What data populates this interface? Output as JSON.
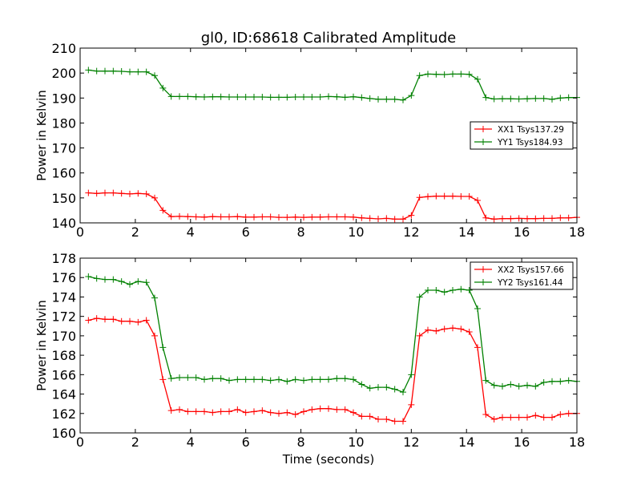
{
  "chart_data": [
    {
      "type": "line",
      "title": "gl0, ID:68618 Calibrated Amplitude",
      "xlabel": "",
      "ylabel": "Power in Kelvin",
      "xlim": [
        0,
        18
      ],
      "ylim": [
        140,
        210
      ],
      "xticks": [
        "0",
        "2",
        "4",
        "6",
        "8",
        "10",
        "12",
        "14",
        "16",
        "18"
      ],
      "yticks": [
        "140",
        "150",
        "160",
        "170",
        "180",
        "190",
        "200",
        "210"
      ],
      "grid": false,
      "legend_position": "center-right",
      "x": [
        0.3,
        0.6,
        0.9,
        1.2,
        1.5,
        1.8,
        2.1,
        2.4,
        2.7,
        3.0,
        3.3,
        3.6,
        3.9,
        4.2,
        4.5,
        4.8,
        5.1,
        5.4,
        5.7,
        6.0,
        6.3,
        6.6,
        6.9,
        7.2,
        7.5,
        7.8,
        8.1,
        8.4,
        8.7,
        9.0,
        9.3,
        9.6,
        9.9,
        10.2,
        10.5,
        10.8,
        11.1,
        11.4,
        11.7,
        12.0,
        12.3,
        12.6,
        12.9,
        13.2,
        13.5,
        13.8,
        14.1,
        14.4,
        14.7,
        15.0,
        15.3,
        15.6,
        15.9,
        16.2,
        16.5,
        16.8,
        17.1,
        17.4,
        17.7,
        18.0
      ],
      "series": [
        {
          "name": "XX1 Tsys137.29",
          "color": "#ff0000",
          "values": [
            152.0,
            151.8,
            152.0,
            152.0,
            151.8,
            151.6,
            151.8,
            151.6,
            150.0,
            145.0,
            142.5,
            142.6,
            142.5,
            142.4,
            142.3,
            142.5,
            142.4,
            142.4,
            142.5,
            142.3,
            142.3,
            142.4,
            142.4,
            142.2,
            142.2,
            142.3,
            142.2,
            142.3,
            142.3,
            142.4,
            142.4,
            142.4,
            142.3,
            142.0,
            141.8,
            141.6,
            141.8,
            141.5,
            141.5,
            143.0,
            150.2,
            150.5,
            150.7,
            150.7,
            150.7,
            150.6,
            150.6,
            149.0,
            142.0,
            141.5,
            141.7,
            141.7,
            141.8,
            141.7,
            141.7,
            141.8,
            141.8,
            142.0,
            142.0,
            142.2
          ]
        },
        {
          "name": "YY1 Tsys184.93",
          "color": "#008000",
          "values": [
            201.2,
            200.8,
            200.8,
            200.8,
            200.7,
            200.5,
            200.5,
            200.5,
            199.0,
            194.0,
            190.6,
            190.6,
            190.6,
            190.5,
            190.4,
            190.5,
            190.5,
            190.4,
            190.4,
            190.4,
            190.4,
            190.4,
            190.3,
            190.3,
            190.3,
            190.4,
            190.4,
            190.4,
            190.4,
            190.6,
            190.5,
            190.3,
            190.5,
            190.2,
            189.8,
            189.5,
            189.5,
            189.5,
            189.2,
            191.0,
            199.0,
            199.6,
            199.5,
            199.4,
            199.6,
            199.6,
            199.5,
            197.5,
            190.2,
            189.6,
            189.7,
            189.7,
            189.6,
            189.7,
            189.8,
            189.8,
            189.5,
            190.0,
            190.2,
            190.2
          ]
        }
      ]
    },
    {
      "type": "line",
      "title": "",
      "xlabel": "Time (seconds)",
      "ylabel": "Power in Kelvin",
      "xlim": [
        0,
        18
      ],
      "ylim": [
        160,
        178
      ],
      "xticks": [
        "0",
        "2",
        "4",
        "6",
        "8",
        "10",
        "12",
        "14",
        "16",
        "18"
      ],
      "yticks": [
        "160",
        "162",
        "164",
        "166",
        "168",
        "170",
        "172",
        "174",
        "176",
        "178"
      ],
      "grid": false,
      "legend_position": "top-right",
      "x": [
        0.3,
        0.6,
        0.9,
        1.2,
        1.5,
        1.8,
        2.1,
        2.4,
        2.7,
        3.0,
        3.3,
        3.6,
        3.9,
        4.2,
        4.5,
        4.8,
        5.1,
        5.4,
        5.7,
        6.0,
        6.3,
        6.6,
        6.9,
        7.2,
        7.5,
        7.8,
        8.1,
        8.4,
        8.7,
        9.0,
        9.3,
        9.6,
        9.9,
        10.2,
        10.5,
        10.8,
        11.1,
        11.4,
        11.7,
        12.0,
        12.3,
        12.6,
        12.9,
        13.2,
        13.5,
        13.8,
        14.1,
        14.4,
        14.7,
        15.0,
        15.3,
        15.6,
        15.9,
        16.2,
        16.5,
        16.8,
        17.1,
        17.4,
        17.7,
        18.0
      ],
      "series": [
        {
          "name": "XX2 Tsys157.66",
          "color": "#ff0000",
          "values": [
            171.6,
            171.8,
            171.7,
            171.7,
            171.5,
            171.5,
            171.4,
            171.6,
            170.0,
            165.5,
            162.3,
            162.4,
            162.2,
            162.2,
            162.2,
            162.1,
            162.2,
            162.2,
            162.4,
            162.1,
            162.2,
            162.3,
            162.1,
            162.0,
            162.1,
            161.9,
            162.2,
            162.4,
            162.5,
            162.5,
            162.4,
            162.4,
            162.1,
            161.7,
            161.7,
            161.4,
            161.4,
            161.2,
            161.2,
            162.9,
            170.0,
            170.6,
            170.5,
            170.7,
            170.8,
            170.7,
            170.4,
            168.8,
            161.9,
            161.4,
            161.6,
            161.6,
            161.6,
            161.6,
            161.8,
            161.6,
            161.6,
            161.9,
            162.0,
            162.0
          ]
        },
        {
          "name": "YY2 Tsys161.44",
          "color": "#008000",
          "values": [
            176.1,
            175.9,
            175.8,
            175.8,
            175.6,
            175.3,
            175.6,
            175.5,
            173.9,
            168.8,
            165.6,
            165.7,
            165.7,
            165.7,
            165.5,
            165.6,
            165.6,
            165.4,
            165.5,
            165.5,
            165.5,
            165.5,
            165.4,
            165.5,
            165.3,
            165.5,
            165.4,
            165.5,
            165.5,
            165.5,
            165.6,
            165.6,
            165.5,
            165.0,
            164.6,
            164.7,
            164.7,
            164.5,
            164.2,
            166.0,
            174.0,
            174.7,
            174.7,
            174.5,
            174.7,
            174.8,
            174.7,
            172.8,
            165.4,
            164.9,
            164.8,
            165.0,
            164.8,
            164.9,
            164.8,
            165.2,
            165.3,
            165.3,
            165.4,
            165.3
          ]
        }
      ]
    }
  ]
}
